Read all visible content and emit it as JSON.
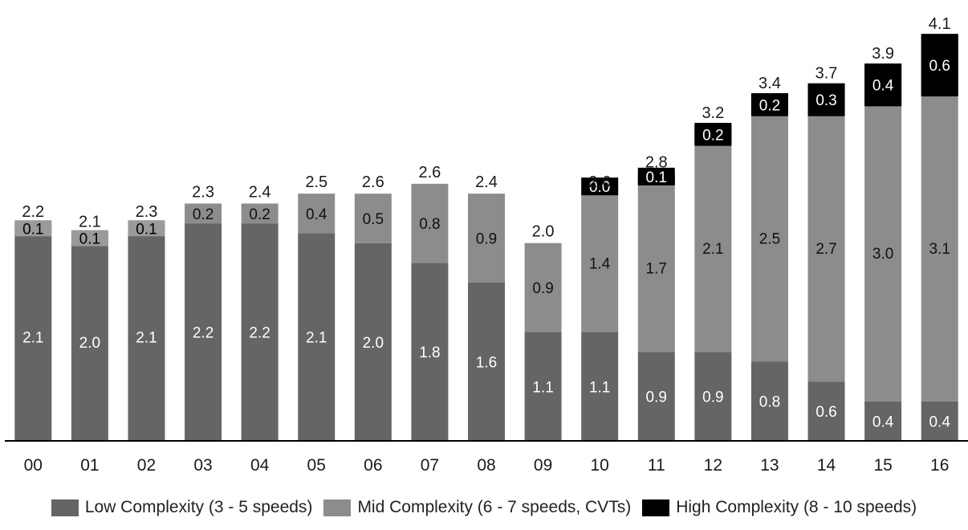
{
  "chart_data": {
    "type": "bar",
    "stacked": true,
    "categories": [
      "00",
      "01",
      "02",
      "03",
      "04",
      "05",
      "06",
      "07",
      "08",
      "09",
      "10",
      "11",
      "12",
      "13",
      "14",
      "15",
      "16"
    ],
    "series": [
      {
        "name": "Low Complexity (3 - 5 speeds)",
        "color": "#656565",
        "values": [
          2.1,
          2.0,
          2.1,
          2.2,
          2.2,
          2.1,
          2.0,
          1.8,
          1.6,
          1.1,
          1.1,
          0.9,
          0.9,
          0.8,
          0.6,
          0.4,
          0.4
        ]
      },
      {
        "name": "Mid Complexity (6 - 7 speeds, CVTs)",
        "color": "#8c8c8c",
        "values": [
          0.1,
          0.1,
          0.1,
          0.2,
          0.2,
          0.4,
          0.5,
          0.8,
          0.9,
          0.9,
          1.4,
          1.7,
          2.1,
          2.5,
          2.7,
          3.0,
          3.1
        ]
      },
      {
        "name": "High Complexity (8 - 10 speeds)",
        "color": "#000000",
        "values": [
          0.0,
          0.0,
          0.0,
          0.0,
          0.0,
          0.0,
          0.0,
          0.0,
          0.0,
          0.0,
          0.0,
          0.1,
          0.2,
          0.2,
          0.3,
          0.4,
          0.6
        ]
      }
    ],
    "segment_labels": [
      [
        "2.1",
        "0.1",
        null
      ],
      [
        "2.0",
        "0.1",
        null
      ],
      [
        "2.1",
        "0.1",
        null
      ],
      [
        "2.2",
        "0.2",
        null
      ],
      [
        "2.2",
        "0.2",
        null
      ],
      [
        "2.1",
        "0.4",
        null
      ],
      [
        "2.0",
        "0.5",
        null
      ],
      [
        "1.8",
        "0.8",
        null
      ],
      [
        "1.6",
        "0.9",
        null
      ],
      [
        "1.1",
        "0.9",
        null
      ],
      [
        "1.1",
        "1.4",
        "0.0"
      ],
      [
        "0.9",
        "1.7",
        "0.1"
      ],
      [
        "0.9",
        "2.1",
        "0.2"
      ],
      [
        "0.8",
        "2.5",
        "0.2"
      ],
      [
        "0.6",
        "2.7",
        "0.3"
      ],
      [
        "0.4",
        "3.0",
        "0.4"
      ],
      [
        "0.4",
        "3.1",
        "0.6"
      ]
    ],
    "totals": [
      "2.2",
      "2.1",
      "2.3",
      "2.3",
      "2.4",
      "2.5",
      "2.6",
      "2.6",
      "2.4",
      "2.0",
      "2.6",
      "2.8",
      "3.2",
      "3.4",
      "3.7",
      "3.9",
      "4.1"
    ],
    "ylim": [
      0,
      4.15
    ],
    "grid": false,
    "legend_position": "bottom",
    "title": "",
    "xlabel": "",
    "ylabel": ""
  }
}
